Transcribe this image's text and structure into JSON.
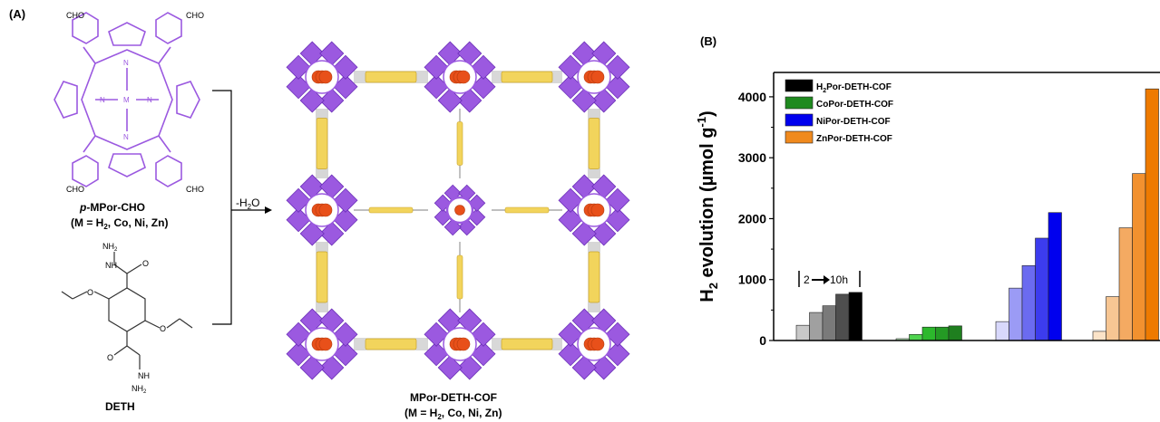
{
  "panels": {
    "a_label": "(A)",
    "b_label": "(B)"
  },
  "scheme": {
    "porphyrin": {
      "cho_top_left": "CHO",
      "cho_top_right": "CHO",
      "cho_bottom_left": "CHO",
      "cho_bottom_right": "CHO",
      "metal": "M",
      "n_label": "N",
      "name_prefix": "p",
      "name_rest": "-MPor-CHO",
      "metals": "(M = H",
      "metals_sub": "2",
      "metals_rest": ", Co, Ni, Zn)"
    },
    "deth": {
      "nh2_top": "NH",
      "nh2_top_sub": "2",
      "nh_top": "NH",
      "o_top": "O",
      "o_left": "O",
      "o_right": "O",
      "o_bottom": "O",
      "nh_bottom": "NH",
      "nh2_bottom": "NH",
      "nh2_bottom_sub": "2",
      "name": "DETH"
    },
    "arrow": {
      "label": "-H",
      "label_sub": "2",
      "label_rest": "O"
    },
    "cof": {
      "name": "MPor-DETH-COF",
      "metals": "(M = H",
      "metals_sub": "2",
      "metals_rest": ", Co, Ni, Zn)"
    },
    "colors": {
      "porphyrin": "#9b59e0",
      "linker": "#f2d45c",
      "atom": "#e8501a"
    }
  },
  "chart_data": {
    "type": "bar",
    "ylabel_main": "H",
    "ylabel_sub": "2",
    "ylabel_rest": " evolution (µmol g",
    "ylabel_sup": "-1",
    "ylabel_end": ")",
    "ylim": [
      0,
      4400
    ],
    "yticks": [
      0,
      1000,
      2000,
      3000,
      4000
    ],
    "ytick_labels": [
      "0",
      "1000",
      "2000",
      "3000",
      "4000"
    ],
    "annotation": "2",
    "annotation_end": "10h",
    "legend_placement": "top-left",
    "series": [
      {
        "name": "H",
        "name_sub": "2",
        "name_rest": "Por-DETH-COF",
        "legend_color": "#000000",
        "colors": [
          "#c8c8c8",
          "#a0a0a0",
          "#7a7a7a",
          "#4e4e4e",
          "#000000"
        ],
        "values": [
          250,
          460,
          570,
          760,
          790
        ]
      },
      {
        "name": "CoPor-DETH-COF",
        "name_sub": "",
        "name_rest": "",
        "legend_color": "#1f8a1f",
        "colors": [
          "#b7e8b7",
          "#4fd44f",
          "#2cb82c",
          "#249a24",
          "#1f7f1f"
        ],
        "values": [
          30,
          100,
          220,
          220,
          240
        ]
      },
      {
        "name": "NiPor-DETH-COF",
        "name_sub": "",
        "name_rest": "",
        "legend_color": "#0000ee",
        "colors": [
          "#d8d8fb",
          "#9b9bf5",
          "#6b6bf0",
          "#3c3cee",
          "#0000ee"
        ],
        "values": [
          310,
          860,
          1230,
          1680,
          2100
        ]
      },
      {
        "name": "ZnPor-DETH-COF",
        "name_sub": "",
        "name_rest": "",
        "legend_color": "#f08a1e",
        "colors": [
          "#fbe3c8",
          "#f7c693",
          "#f4aa62",
          "#f2912f",
          "#ee7a00"
        ],
        "values": [
          150,
          720,
          1850,
          2740,
          4130
        ]
      }
    ]
  }
}
